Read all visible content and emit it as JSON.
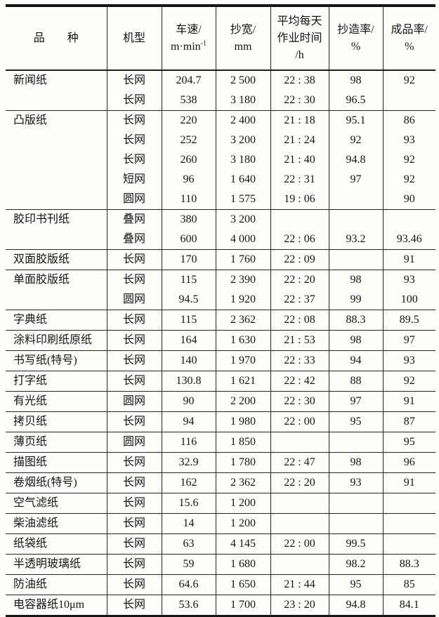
{
  "table": {
    "headers": {
      "variety": "品　　种",
      "machine": "机型",
      "speed_title": "车速/",
      "speed_unit_base": "m·min",
      "speed_unit_sup": "-1",
      "width_title": "抄宽/",
      "width_unit": "mm",
      "time_line1": "平均每天",
      "time_line2": "作业时间",
      "time_line3": "/h",
      "rate_title": "抄造率/",
      "rate_unit": "%",
      "yield_title": "成品率/",
      "yield_unit": "%"
    },
    "groups": [
      {
        "variety": "新闻纸",
        "rows": [
          [
            "长网",
            "204.7",
            "2 500",
            "22 : 38",
            "98",
            "92"
          ],
          [
            "长网",
            "538",
            "3 180",
            "22 : 30",
            "96.5",
            ""
          ]
        ]
      },
      {
        "variety": "凸版纸",
        "rows": [
          [
            "长网",
            "220",
            "2 400",
            "21 : 18",
            "95.1",
            "86"
          ],
          [
            "长网",
            "252",
            "3 200",
            "21 : 24",
            "92",
            "93"
          ],
          [
            "长网",
            "260",
            "3 180",
            "21 : 40",
            "94.8",
            "92"
          ],
          [
            "短网",
            "96",
            "1 640",
            "22 : 31",
            "97",
            "92"
          ],
          [
            "圆网",
            "110",
            "1 575",
            "19 : 06",
            "",
            "90"
          ]
        ]
      },
      {
        "variety": "胶印书刊纸",
        "rows": [
          [
            "叠网",
            "380",
            "3 200",
            "",
            "",
            ""
          ],
          [
            "叠网",
            "600",
            "4 000",
            "22 : 06",
            "93.2",
            "93.46"
          ]
        ]
      },
      {
        "variety": "双面胶版纸",
        "rows": [
          [
            "长网",
            "170",
            "1 760",
            "22 : 09",
            "",
            "91"
          ]
        ]
      },
      {
        "variety": "单面胶版纸",
        "rows": [
          [
            "长网",
            "115",
            "2 390",
            "22 : 20",
            "98",
            "93"
          ],
          [
            "圆网",
            "94.5",
            "1 920",
            "22 : 37",
            "99",
            "100"
          ]
        ]
      },
      {
        "variety": "字典纸",
        "rows": [
          [
            "长网",
            "115",
            "2 362",
            "22 : 08",
            "88.3",
            "89.5"
          ]
        ]
      },
      {
        "variety": "涂料印刷纸原纸",
        "rows": [
          [
            "长网",
            "164",
            "1 630",
            "21 : 53",
            "98",
            "97"
          ]
        ]
      },
      {
        "variety": "书写纸(特号)",
        "rows": [
          [
            "长网",
            "140",
            "1 970",
            "22 : 33",
            "94",
            "93"
          ]
        ]
      },
      {
        "variety": "打字纸",
        "rows": [
          [
            "长网",
            "130.8",
            "1 621",
            "22 : 42",
            "88",
            "92"
          ]
        ]
      },
      {
        "variety": "有光纸",
        "rows": [
          [
            "圆网",
            "90",
            "2 200",
            "22 : 30",
            "97",
            "91"
          ]
        ]
      },
      {
        "variety": "拷贝纸",
        "rows": [
          [
            "长网",
            "94",
            "1 980",
            "22 : 00",
            "95",
            "87"
          ]
        ]
      },
      {
        "variety": "薄页纸",
        "rows": [
          [
            "圆网",
            "116",
            "1 850",
            "",
            "",
            "95"
          ]
        ]
      },
      {
        "variety": "描图纸",
        "rows": [
          [
            "长网",
            "32.9",
            "1 780",
            "22 : 47",
            "98",
            "96"
          ]
        ]
      },
      {
        "variety": "卷烟纸(特号)",
        "rows": [
          [
            "长网",
            "162",
            "2 362",
            "22 : 20",
            "93",
            "91"
          ]
        ]
      },
      {
        "variety": "空气滤纸",
        "rows": [
          [
            "长网",
            "15.6",
            "1 200",
            "",
            "",
            ""
          ]
        ]
      },
      {
        "variety": "柴油滤纸",
        "rows": [
          [
            "长网",
            "14",
            "1 200",
            "",
            "",
            ""
          ]
        ]
      },
      {
        "variety": "纸袋纸",
        "rows": [
          [
            "长网",
            "63",
            "4 145",
            "22 : 00",
            "99.5",
            ""
          ]
        ]
      },
      {
        "variety": "半透明玻璃纸",
        "rows": [
          [
            "长网",
            "59",
            "1 680",
            "",
            "98.2",
            "88.3"
          ]
        ]
      },
      {
        "variety": "防油纸",
        "rows": [
          [
            "长网",
            "64.6",
            "1 650",
            "21 : 44",
            "95",
            "85"
          ]
        ]
      },
      {
        "variety": "电容器纸10μm",
        "rows": [
          [
            "长网",
            "53.6",
            "1 700",
            "23 : 20",
            "94.8",
            "84.1"
          ]
        ]
      }
    ]
  }
}
